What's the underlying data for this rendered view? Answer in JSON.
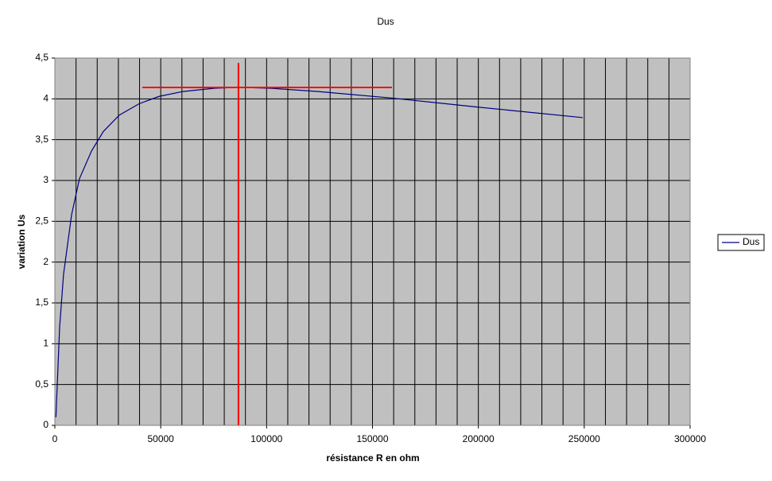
{
  "chart_data": {
    "type": "line",
    "title": "Dus",
    "x_label": "résistance R en ohm",
    "y_label": "variation Us",
    "x": [
      500,
      2250,
      4100,
      7900,
      11600,
      17300,
      22900,
      30400,
      39800,
      49200,
      60500,
      75500,
      86700,
      101800,
      124300,
      159000,
      199400,
      249300
    ],
    "series": [
      {
        "name": "Dus",
        "color": "#000080",
        "values": [
          0.1,
          1.2,
          1.85,
          2.58,
          3.02,
          3.36,
          3.6,
          3.8,
          3.94,
          4.03,
          4.09,
          4.13,
          4.14,
          4.13,
          4.09,
          4.01,
          3.9,
          3.77
        ]
      }
    ],
    "reference_lines": [
      {
        "color": "#ff0000",
        "x": [
          41300,
          159200
        ],
        "y": [
          4.14,
          4.14
        ]
      },
      {
        "color": "#ff0000",
        "x": [
          86700,
          86700
        ],
        "y": [
          0,
          4.44
        ]
      }
    ],
    "xlim": [
      0,
      300000
    ],
    "ylim": [
      0,
      4.5
    ],
    "xticks": [
      0,
      50000,
      100000,
      150000,
      200000,
      250000,
      300000
    ],
    "xgrid": [
      10000,
      20000,
      30000,
      40000,
      60000,
      70000,
      80000,
      90000,
      110000,
      120000,
      130000,
      140000,
      160000,
      170000,
      180000,
      190000,
      210000,
      220000,
      230000,
      240000,
      260000,
      270000,
      280000,
      290000
    ],
    "yticks": [
      0,
      {
        "value": 0.5,
        "label": "0,5"
      },
      1,
      {
        "value": 1.5,
        "label": "1,5"
      },
      2,
      {
        "value": 2.5,
        "label": "2,5"
      },
      3,
      {
        "value": 3.5,
        "label": "3,5"
      },
      4,
      {
        "value": 4.5,
        "label": "4,5"
      }
    ],
    "grid": true,
    "plot_background": "#c0c0c0",
    "legend": "right"
  }
}
